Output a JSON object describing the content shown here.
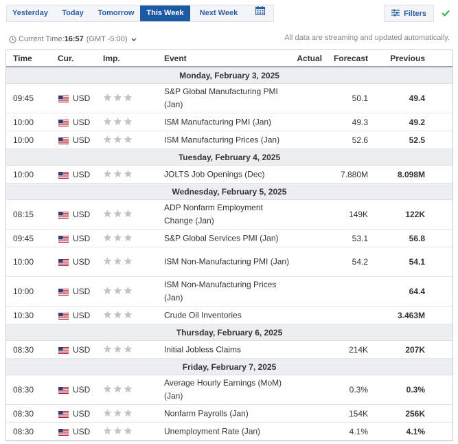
{
  "tabs": [
    {
      "label": "Yesterday",
      "active": false
    },
    {
      "label": "Today",
      "active": false
    },
    {
      "label": "Tomorrow",
      "active": false
    },
    {
      "label": "This Week",
      "active": true
    },
    {
      "label": "Next Week",
      "active": false
    }
  ],
  "filters_label": "Filters",
  "current_time": {
    "label": "Current Time:",
    "value": "16:57",
    "timezone": "(GMT -5:00)"
  },
  "notice": "All data are streaming and updated automatically.",
  "columns": {
    "time": "Time",
    "currency": "Cur.",
    "importance": "Imp.",
    "event": "Event",
    "actual": "Actual",
    "forecast": "Forecast",
    "previous": "Previous"
  },
  "colors": {
    "active_tab": "#1d5aa5",
    "link": "#2b5fa8",
    "star": "#c4c4c4",
    "check": "#3aa547"
  },
  "days": [
    {
      "date": "Monday, February 3, 2025",
      "events": [
        {
          "time": "09:45",
          "currency": "USD",
          "stars": 3,
          "event": "S&P Global Manufacturing PMI (Jan)",
          "actual": "",
          "forecast": "50.1",
          "previous": "49.4"
        },
        {
          "time": "10:00",
          "currency": "USD",
          "stars": 3,
          "event": "ISM Manufacturing PMI (Jan)",
          "actual": "",
          "forecast": "49.3",
          "previous": "49.2"
        },
        {
          "time": "10:00",
          "currency": "USD",
          "stars": 3,
          "event": "ISM Manufacturing Prices (Jan)",
          "actual": "",
          "forecast": "52.6",
          "previous": "52.5"
        }
      ]
    },
    {
      "date": "Tuesday, February 4, 2025",
      "events": [
        {
          "time": "10:00",
          "currency": "USD",
          "stars": 3,
          "event": "JOLTS Job Openings (Dec)",
          "actual": "",
          "forecast": "7.880M",
          "previous": "8.098M"
        }
      ]
    },
    {
      "date": "Wednesday, February 5, 2025",
      "events": [
        {
          "time": "08:15",
          "currency": "USD",
          "stars": 3,
          "event": "ADP Nonfarm Employment Change (Jan)",
          "actual": "",
          "forecast": "149K",
          "previous": "122K"
        },
        {
          "time": "09:45",
          "currency": "USD",
          "stars": 3,
          "event": "S&P Global Services PMI (Jan)",
          "actual": "",
          "forecast": "53.1",
          "previous": "56.8"
        },
        {
          "time": "10:00",
          "currency": "USD",
          "stars": 3,
          "event": "ISM Non-Manufacturing PMI (Jan)",
          "actual": "",
          "forecast": "54.2",
          "previous": "54.1"
        },
        {
          "time": "10:00",
          "currency": "USD",
          "stars": 3,
          "event": "ISM Non-Manufacturing Prices (Jan)",
          "actual": "",
          "forecast": "",
          "previous": "64.4"
        },
        {
          "time": "10:30",
          "currency": "USD",
          "stars": 3,
          "event": "Crude Oil Inventories",
          "actual": "",
          "forecast": "",
          "previous": "3.463M"
        }
      ]
    },
    {
      "date": "Thursday, February 6, 2025",
      "events": [
        {
          "time": "08:30",
          "currency": "USD",
          "stars": 3,
          "event": "Initial Jobless Claims",
          "actual": "",
          "forecast": "214K",
          "previous": "207K"
        }
      ]
    },
    {
      "date": "Friday, February 7, 2025",
      "events": [
        {
          "time": "08:30",
          "currency": "USD",
          "stars": 3,
          "event": "Average Hourly Earnings (MoM) (Jan)",
          "actual": "",
          "forecast": "0.3%",
          "previous": "0.3%"
        },
        {
          "time": "08:30",
          "currency": "USD",
          "stars": 3,
          "event": "Nonfarm Payrolls (Jan)",
          "actual": "",
          "forecast": "154K",
          "previous": "256K"
        },
        {
          "time": "08:30",
          "currency": "USD",
          "stars": 3,
          "event": "Unemployment Rate (Jan)",
          "actual": "",
          "forecast": "4.1%",
          "previous": "4.1%"
        }
      ]
    }
  ]
}
